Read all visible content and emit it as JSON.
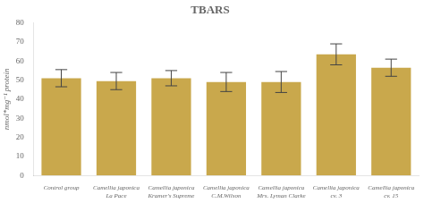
{
  "chart_data": {
    "type": "bar",
    "title": "TBARS",
    "ylabel": "nmol*mg⁻¹ protein",
    "categories": [
      "Control group",
      "Camellia japonica\nLa Pace",
      "Camellia japonica\nKramer's Supreme",
      "Camellia japonica\nC.M.Wilson",
      "Camellia japonica\nMrs. Lyman Clarke",
      "Camellia japonica\ncv. 3",
      "Camellia japonica\ncv. 15"
    ],
    "values": [
      51.0,
      49.5,
      51.0,
      49.0,
      49.0,
      63.5,
      56.5
    ],
    "errors": [
      4.5,
      4.5,
      4.0,
      5.0,
      5.5,
      5.5,
      4.5
    ],
    "color": "#C9A84C",
    "ylim": [
      0,
      80
    ],
    "yticks": [
      0,
      10,
      20,
      30,
      40,
      50,
      60,
      70,
      80
    ],
    "grid": false
  }
}
